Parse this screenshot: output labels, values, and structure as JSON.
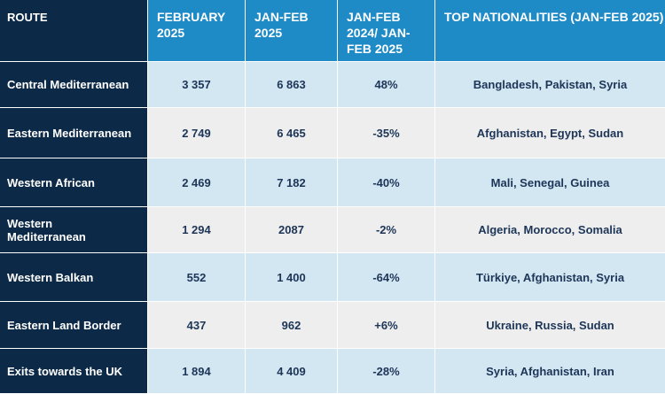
{
  "headers": {
    "route": "ROUTE",
    "feb_2025": "FEBRUARY 2025",
    "jan_feb_2025": "JAN-FEB 2025",
    "change": "JAN-FEB 2024/ JAN-FEB 2025",
    "nationalities": "TOP NATIONALITIES (JAN-FEB 2025)"
  },
  "rows": [
    {
      "route": "Central Mediterranean",
      "feb": "3 357",
      "janfeb": "6 863",
      "change": "48%",
      "nationalities": "Bangladesh, Pakistan, Syria"
    },
    {
      "route": "Eastern Mediterranean",
      "feb": "2 749",
      "janfeb": "6 465",
      "change": "-35%",
      "nationalities": "Afghanistan, Egypt, Sudan"
    },
    {
      "route": "Western African",
      "feb": "2 469",
      "janfeb": "7 182",
      "change": "-40%",
      "nationalities": "Mali, Senegal, Guinea"
    },
    {
      "route": "Western Mediterranean",
      "feb": "1 294",
      "janfeb": "2087",
      "change": "-2%",
      "nationalities": "Algeria, Morocco, Somalia"
    },
    {
      "route": "Western Balkan",
      "feb": "552",
      "janfeb": "1 400",
      "change": "-64%",
      "nationalities": "Türkiye, Afghanistan, Syria"
    },
    {
      "route": "Eastern Land Border",
      "feb": "437",
      "janfeb": "962",
      "change": "+6%",
      "nationalities": "Ukraine, Russia, Sudan"
    },
    {
      "route": "Exits towards the UK",
      "feb": "1 894",
      "janfeb": "4 409",
      "change": "-28%",
      "nationalities": "Syria, Afghanistan, Iran"
    }
  ]
}
